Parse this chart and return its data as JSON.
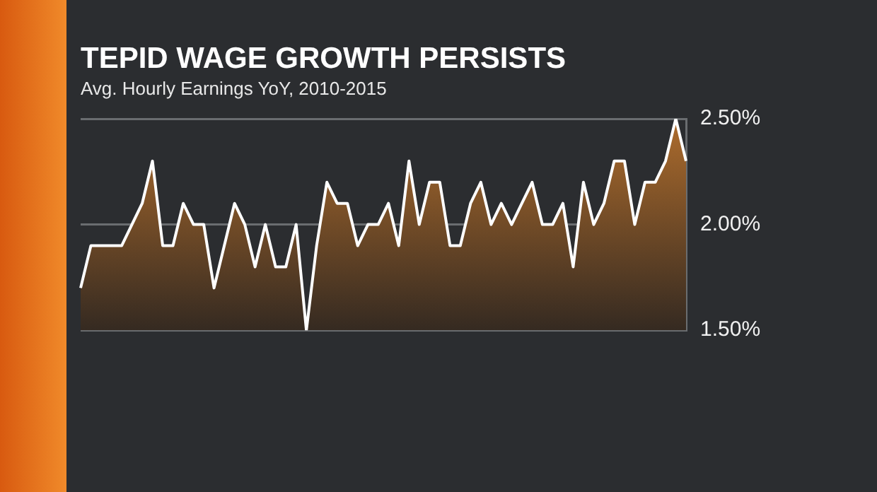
{
  "chart_data": {
    "type": "area",
    "title": "TEPID WAGE GROWTH PERSISTS",
    "subtitle": "Avg. Hourly Earnings YoY, 2010-2015",
    "categories": [
      null,
      null,
      null,
      null,
      null,
      null,
      null,
      null,
      null,
      null,
      null,
      null,
      null,
      null,
      null,
      null,
      null,
      null,
      null,
      null,
      null,
      null,
      null,
      null,
      null,
      null,
      null,
      null,
      null,
      null,
      null,
      null,
      null,
      null,
      null,
      null,
      null,
      null,
      null,
      null,
      null,
      null,
      null,
      null,
      null,
      null,
      null,
      null,
      null,
      null,
      null,
      null,
      null,
      null,
      null,
      null,
      null,
      null,
      null,
      null
    ],
    "series": [
      {
        "color": "#a8692c",
        "values": [
          1.7,
          1.9,
          1.9,
          1.9,
          1.9,
          2.0,
          2.1,
          2.3,
          1.9,
          1.9,
          2.1,
          2.0,
          2.0,
          1.7,
          1.9,
          2.1,
          2.0,
          1.8,
          2.0,
          1.8,
          1.8,
          2.0,
          1.5,
          1.9,
          2.2,
          2.1,
          2.1,
          1.9,
          2.0,
          2.0,
          2.1,
          1.9,
          2.3,
          2.0,
          2.2,
          2.2,
          1.9,
          1.9,
          2.1,
          2.2,
          2.0,
          2.1,
          2.0,
          2.1,
          2.2,
          2.0,
          2.0,
          2.1,
          1.8,
          2.2,
          2.0,
          2.1,
          2.3,
          2.3,
          2.0,
          2.2,
          2.2,
          2.3,
          2.5,
          2.3
        ]
      }
    ],
    "ylim": [
      1.5,
      2.5
    ],
    "yticks": [
      {
        "value": 1.5,
        "label": "1.50%"
      },
      {
        "value": 2.0,
        "label": "2.00%"
      },
      {
        "value": 2.5,
        "label": "2.50%"
      }
    ],
    "grid": "y",
    "legend": false,
    "marker": "none",
    "line_style": "solid"
  }
}
